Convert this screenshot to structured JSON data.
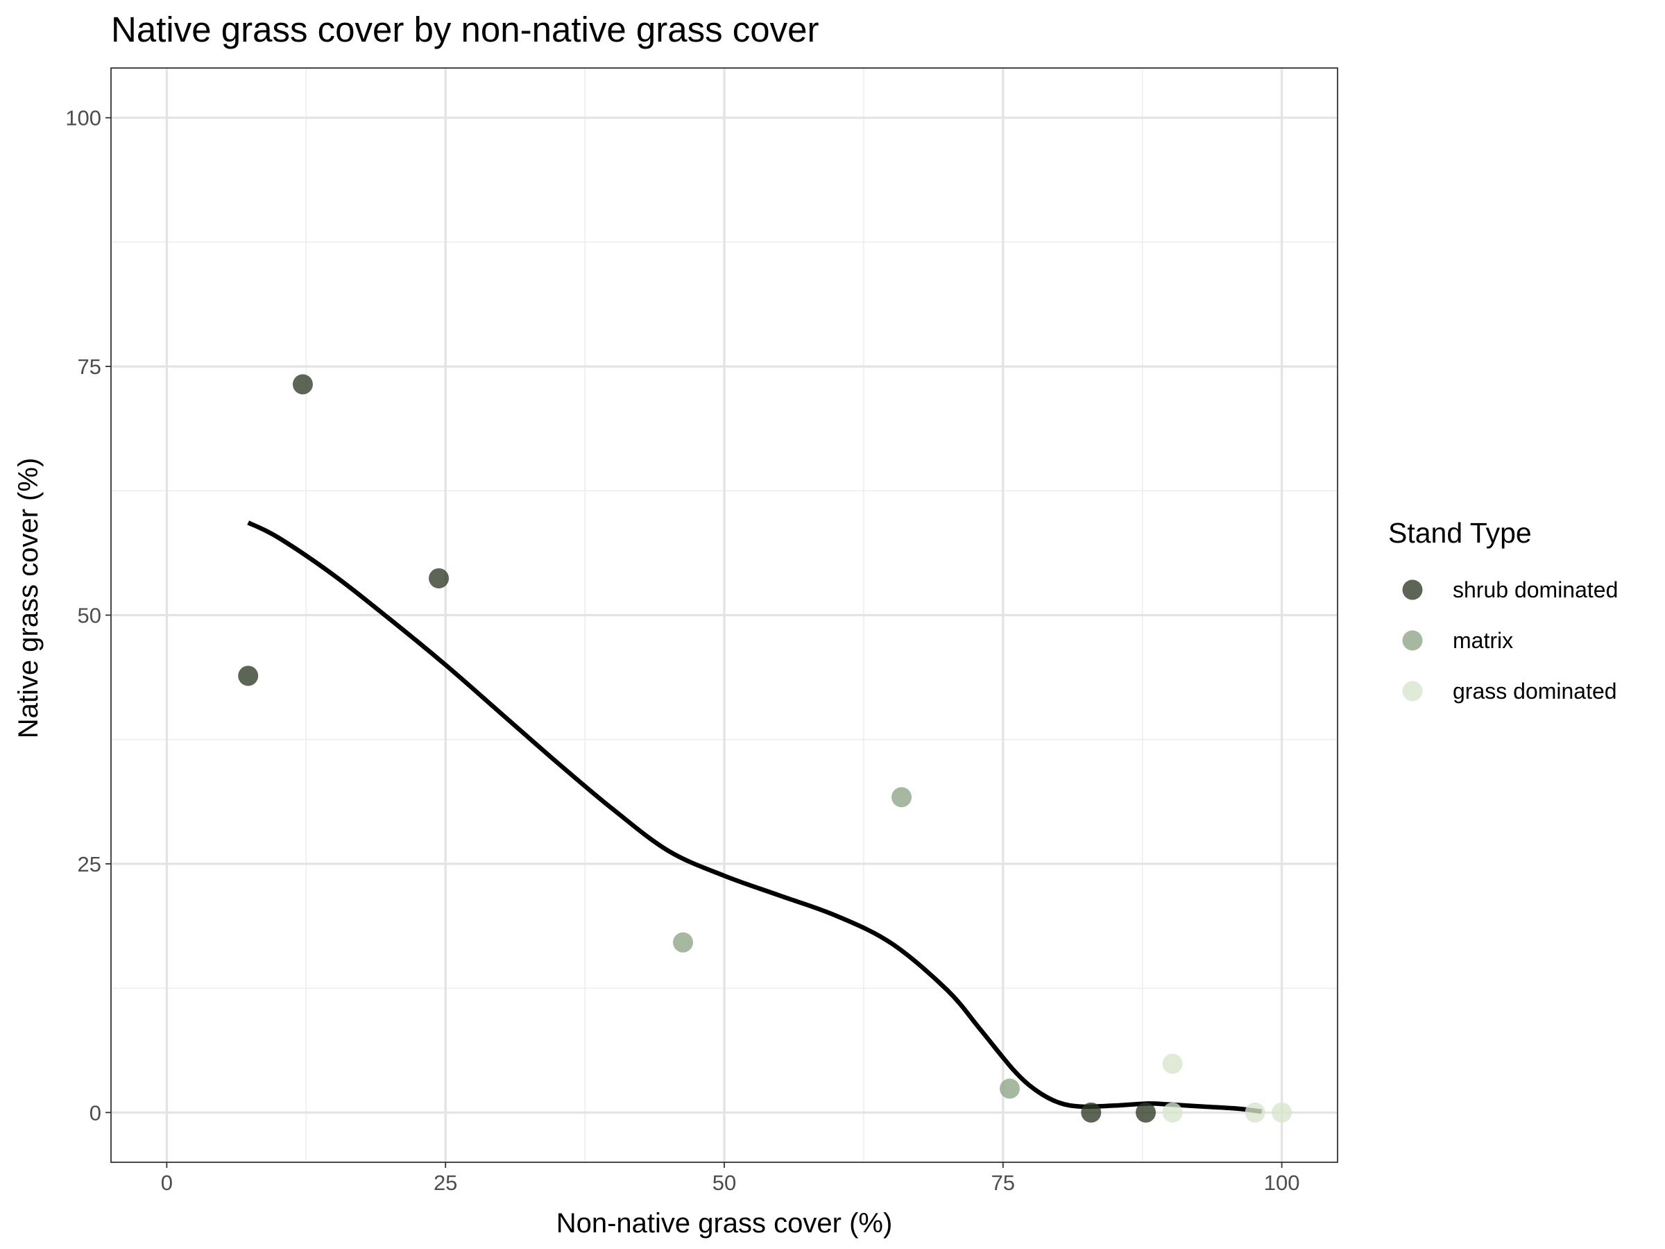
{
  "chart_data": {
    "type": "scatter",
    "title": "Native grass cover by non-native grass cover",
    "xlabel": "Non-native grass cover (%)",
    "ylabel": "Native grass cover (%)",
    "xlim": [
      -5,
      105
    ],
    "ylim": [
      -5,
      105
    ],
    "x_ticks": [
      0,
      25,
      50,
      75,
      100
    ],
    "y_ticks": [
      0,
      25,
      50,
      75,
      100
    ],
    "x_tick_labels": [
      "0",
      "25",
      "50",
      "75",
      "100"
    ],
    "y_tick_labels": [
      "0",
      "25",
      "50",
      "75",
      "100"
    ],
    "grid": true,
    "legend": {
      "title": "Stand Type",
      "position": "right",
      "entries": [
        {
          "label": "shrub dominated",
          "color": "#2f3a27"
        },
        {
          "label": "matrix",
          "color": "#8da585"
        },
        {
          "label": "grass dominated",
          "color": "#d6e6cc"
        }
      ]
    },
    "series": [
      {
        "name": "shrub dominated",
        "color": "#2f3a27",
        "points": [
          [
            7.3,
            43.9
          ],
          [
            12.2,
            73.2
          ],
          [
            24.4,
            53.7
          ],
          [
            82.9,
            0
          ],
          [
            87.8,
            0
          ]
        ]
      },
      {
        "name": "matrix",
        "color": "#8da585",
        "points": [
          [
            46.3,
            17.1
          ],
          [
            65.9,
            31.7
          ],
          [
            75.6,
            2.4
          ]
        ]
      },
      {
        "name": "grass dominated",
        "color": "#d6e6cc",
        "points": [
          [
            90.2,
            4.9
          ],
          [
            90.2,
            0
          ],
          [
            97.6,
            0
          ],
          [
            100,
            0
          ]
        ]
      }
    ],
    "smooth_line": {
      "name": "loess fit",
      "color": "#000000",
      "x": [
        7.3,
        10,
        15,
        20,
        25,
        30,
        35,
        40,
        45,
        50,
        55,
        60,
        65,
        70,
        73,
        76,
        78,
        80,
        82,
        85,
        88,
        90,
        93,
        96,
        98.2
      ],
      "y": [
        59.3,
        57.8,
        54.0,
        49.6,
        45.0,
        40.1,
        35.2,
        30.5,
        26.3,
        23.8,
        21.8,
        19.8,
        17.0,
        12.3,
        8.3,
        4.2,
        2.2,
        1.0,
        0.6,
        0.7,
        0.9,
        0.8,
        0.6,
        0.4,
        0.1
      ]
    }
  }
}
